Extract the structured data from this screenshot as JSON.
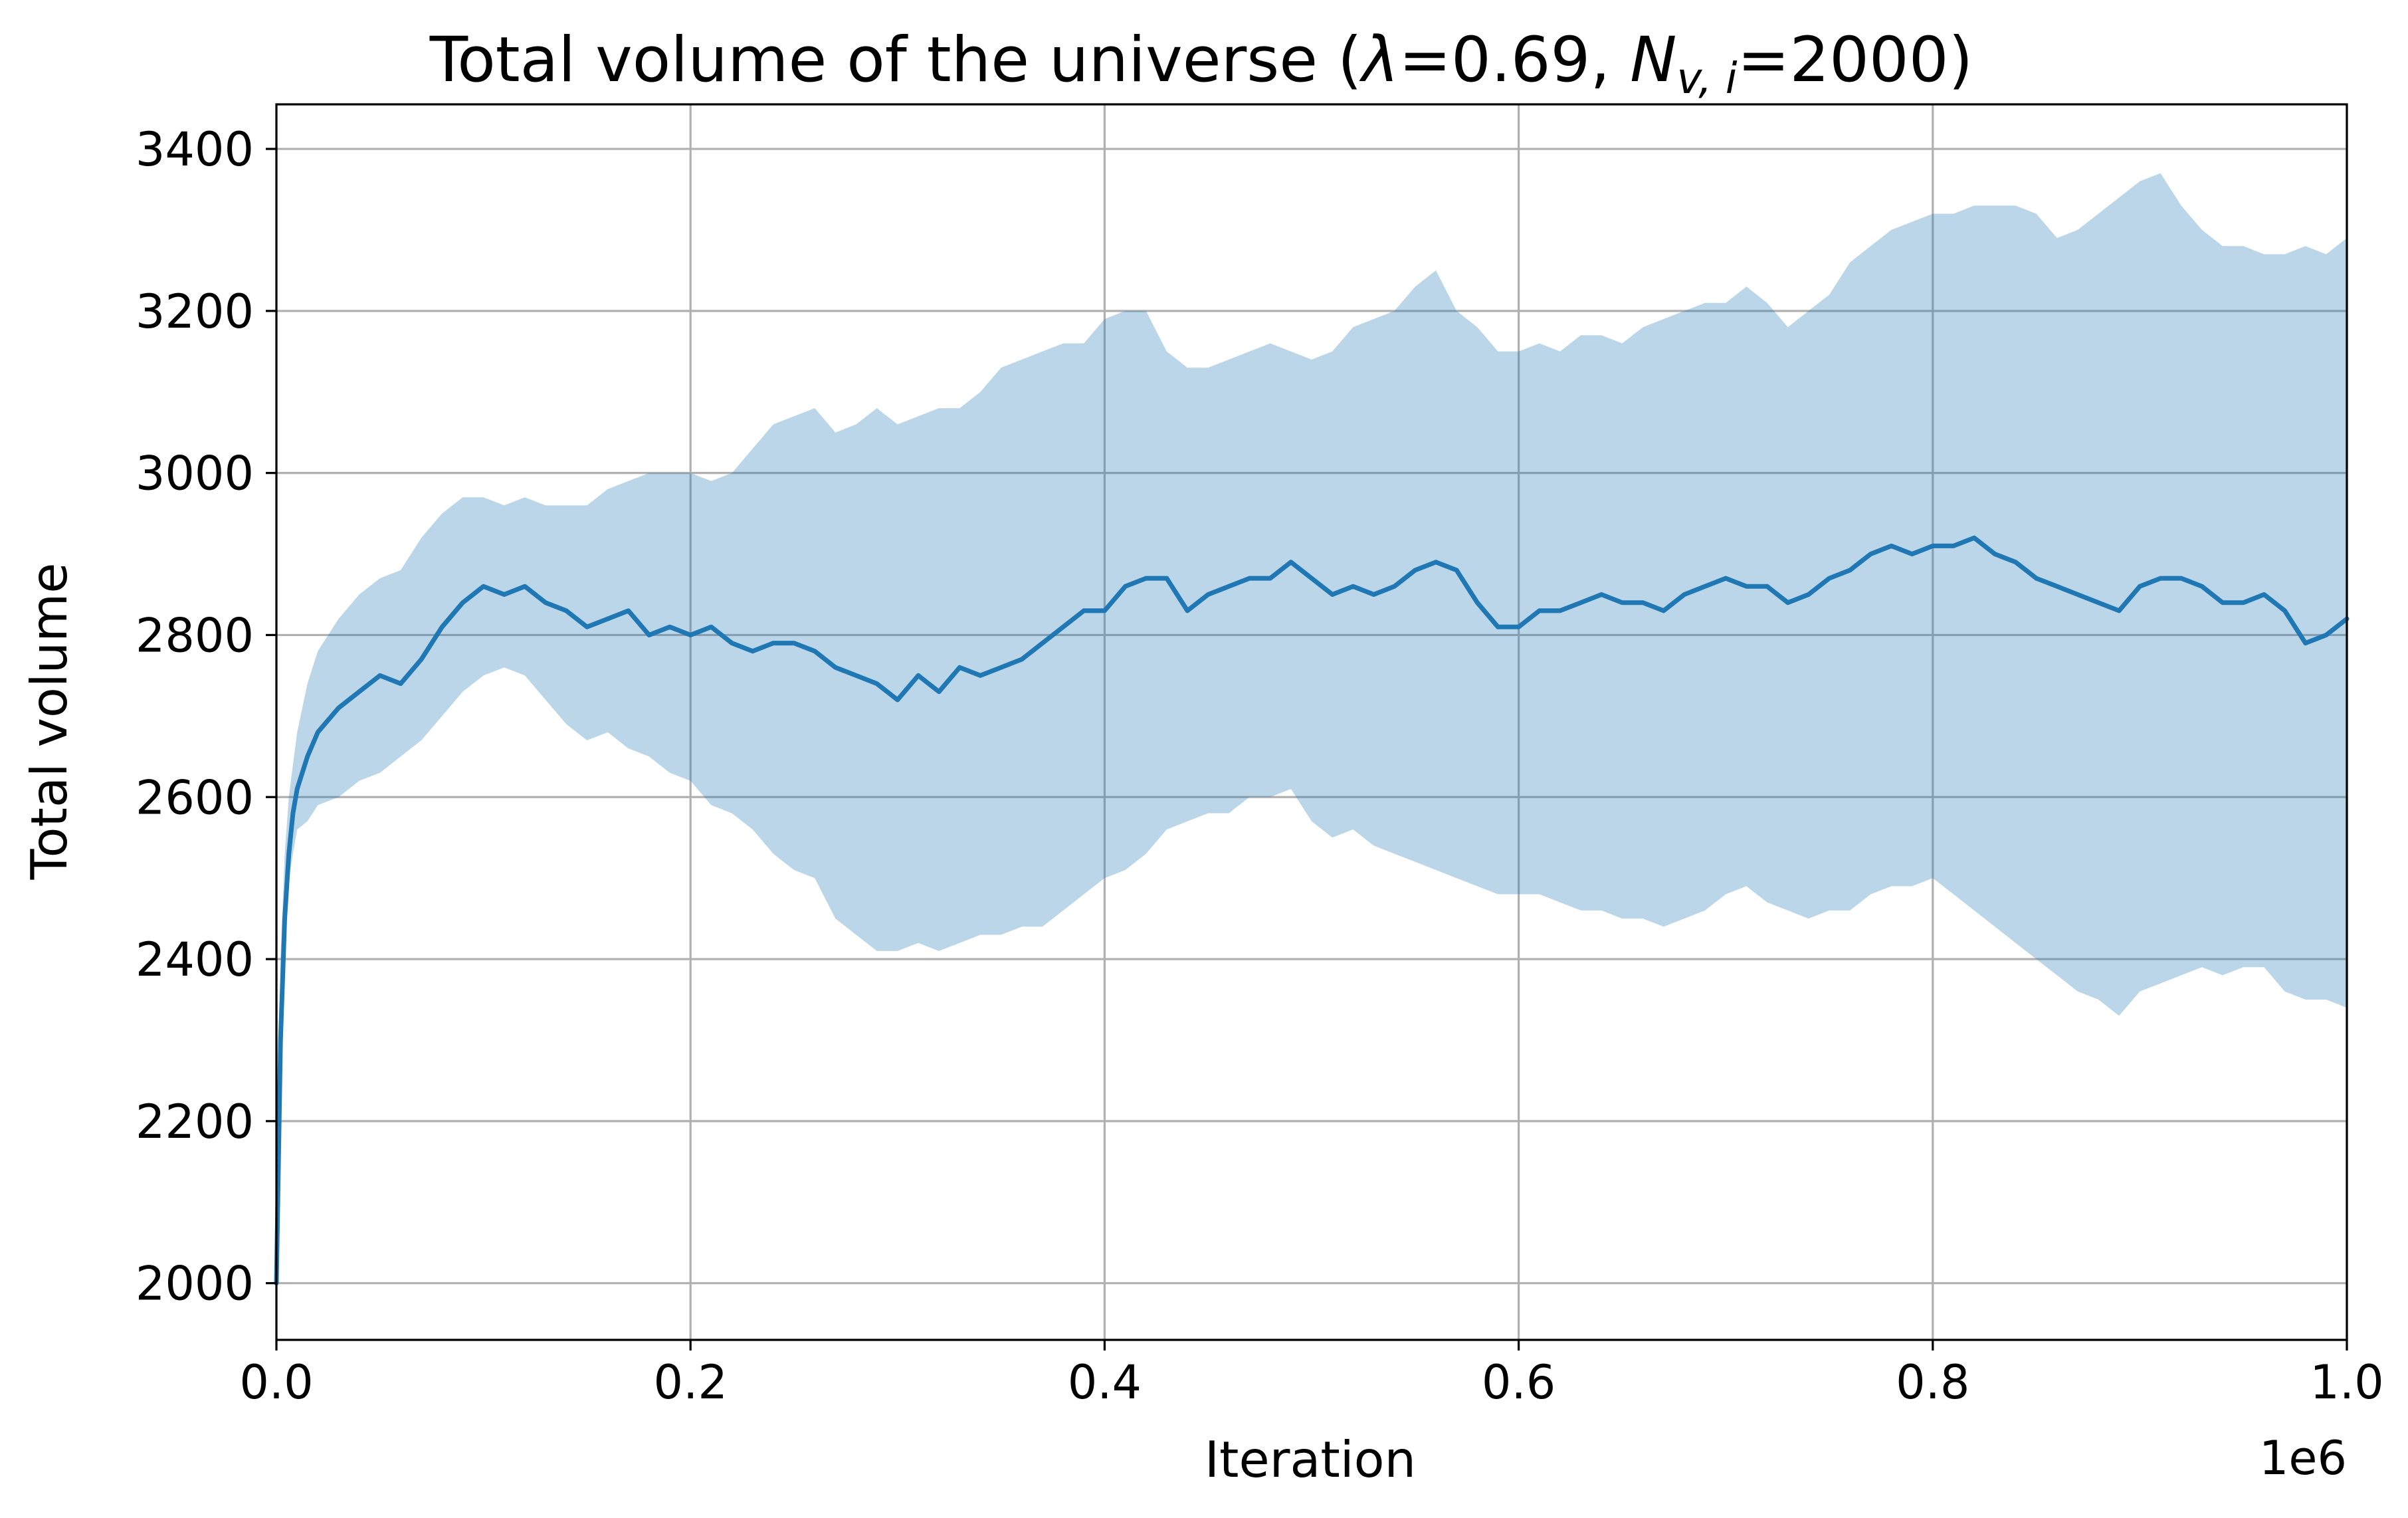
{
  "chart_data": {
    "type": "line",
    "title": "Total volume of the universe (λ=0.69, N_{v,i}=2000)",
    "title_parts": {
      "prefix": "Total volume of the universe (",
      "lambda_symbol": "λ",
      "lambda_value": "=0.69, ",
      "n_symbol": "N",
      "n_subscript": "v, i",
      "n_value": "=2000)"
    },
    "xlabel": "Iteration",
    "ylabel": "Total volume",
    "x_offset_label": "1e6",
    "xlim": [
      0,
      1000000
    ],
    "ylim": [
      1930,
      3455
    ],
    "x_ticks": [
      0,
      200000,
      400000,
      600000,
      800000,
      1000000
    ],
    "x_tick_labels": [
      "0.0",
      "0.2",
      "0.4",
      "0.6",
      "0.8",
      "1.0"
    ],
    "y_ticks": [
      2000,
      2200,
      2400,
      2600,
      2800,
      3000,
      3200,
      3400
    ],
    "y_tick_labels": [
      "2000",
      "2200",
      "2400",
      "2600",
      "2800",
      "3000",
      "3200",
      "3400"
    ],
    "grid": true,
    "colors": {
      "line": "#1f77b4",
      "band": "#1f77b4"
    },
    "band_opacity": 0.3,
    "series": [
      {
        "x": [
          0,
          2000,
          4000,
          6000,
          8000,
          10000,
          15000,
          20000,
          30000,
          40000,
          50000,
          60000,
          70000,
          80000,
          90000,
          100000,
          110000,
          120000,
          130000,
          140000,
          150000,
          160000,
          170000,
          180000,
          190000,
          200000,
          210000,
          220000,
          230000,
          240000,
          250000,
          260000,
          270000,
          280000,
          290000,
          300000,
          310000,
          320000,
          330000,
          340000,
          350000,
          360000,
          370000,
          380000,
          390000,
          400000,
          410000,
          420000,
          430000,
          440000,
          450000,
          460000,
          470000,
          480000,
          490000,
          500000,
          510000,
          520000,
          530000,
          540000,
          550000,
          560000,
          570000,
          580000,
          590000,
          600000,
          610000,
          620000,
          630000,
          640000,
          650000,
          660000,
          670000,
          680000,
          690000,
          700000,
          710000,
          720000,
          730000,
          740000,
          750000,
          760000,
          770000,
          780000,
          790000,
          800000,
          810000,
          820000,
          830000,
          840000,
          850000,
          860000,
          870000,
          880000,
          890000,
          900000,
          910000,
          920000,
          930000,
          940000,
          950000,
          960000,
          970000,
          980000,
          990000,
          1000000
        ],
        "mean": [
          2000,
          2300,
          2450,
          2530,
          2580,
          2610,
          2650,
          2680,
          2710,
          2730,
          2750,
          2740,
          2770,
          2810,
          2840,
          2860,
          2850,
          2860,
          2840,
          2830,
          2810,
          2820,
          2830,
          2800,
          2810,
          2800,
          2810,
          2790,
          2780,
          2790,
          2790,
          2780,
          2760,
          2750,
          2740,
          2720,
          2750,
          2730,
          2760,
          2750,
          2760,
          2770,
          2790,
          2810,
          2830,
          2830,
          2860,
          2870,
          2870,
          2830,
          2850,
          2860,
          2870,
          2870,
          2890,
          2870,
          2850,
          2860,
          2850,
          2860,
          2880,
          2890,
          2880,
          2840,
          2810,
          2810,
          2830,
          2830,
          2840,
          2850,
          2840,
          2840,
          2830,
          2850,
          2860,
          2870,
          2860,
          2860,
          2840,
          2850,
          2870,
          2880,
          2900,
          2910,
          2900,
          2910,
          2910,
          2920,
          2900,
          2890,
          2870,
          2860,
          2850,
          2840,
          2830,
          2860,
          2870,
          2870,
          2860,
          2840,
          2840,
          2850,
          2830,
          2790,
          2800,
          2820
        ],
        "lower": [
          2000,
          2250,
          2420,
          2500,
          2530,
          2560,
          2570,
          2590,
          2600,
          2620,
          2630,
          2650,
          2670,
          2700,
          2730,
          2750,
          2760,
          2750,
          2720,
          2690,
          2670,
          2680,
          2660,
          2650,
          2630,
          2620,
          2590,
          2580,
          2560,
          2530,
          2510,
          2500,
          2450,
          2430,
          2410,
          2410,
          2420,
          2410,
          2420,
          2430,
          2430,
          2440,
          2440,
          2460,
          2480,
          2500,
          2510,
          2530,
          2560,
          2570,
          2580,
          2580,
          2600,
          2600,
          2610,
          2570,
          2550,
          2560,
          2540,
          2530,
          2520,
          2510,
          2500,
          2490,
          2480,
          2480,
          2480,
          2470,
          2460,
          2460,
          2450,
          2450,
          2440,
          2450,
          2460,
          2480,
          2490,
          2470,
          2460,
          2450,
          2460,
          2460,
          2480,
          2490,
          2490,
          2500,
          2480,
          2460,
          2440,
          2420,
          2400,
          2380,
          2360,
          2350,
          2330,
          2360,
          2370,
          2380,
          2390,
          2380,
          2390,
          2390,
          2360,
          2350,
          2350,
          2340
        ],
        "upper": [
          2000,
          2400,
          2530,
          2600,
          2640,
          2680,
          2740,
          2780,
          2820,
          2850,
          2870,
          2880,
          2920,
          2950,
          2970,
          2970,
          2960,
          2970,
          2960,
          2960,
          2960,
          2980,
          2990,
          3000,
          3000,
          3000,
          2990,
          3000,
          3030,
          3060,
          3070,
          3080,
          3050,
          3060,
          3080,
          3060,
          3070,
          3080,
          3080,
          3100,
          3130,
          3140,
          3150,
          3160,
          3160,
          3190,
          3200,
          3200,
          3150,
          3130,
          3130,
          3140,
          3150,
          3160,
          3150,
          3140,
          3150,
          3180,
          3190,
          3200,
          3230,
          3250,
          3200,
          3180,
          3150,
          3150,
          3160,
          3150,
          3170,
          3170,
          3160,
          3180,
          3190,
          3200,
          3210,
          3210,
          3230,
          3210,
          3180,
          3200,
          3220,
          3260,
          3280,
          3300,
          3310,
          3320,
          3320,
          3330,
          3330,
          3330,
          3320,
          3290,
          3300,
          3320,
          3340,
          3360,
          3370,
          3330,
          3300,
          3280,
          3280,
          3270,
          3270,
          3280,
          3270,
          3290
        ]
      }
    ]
  }
}
